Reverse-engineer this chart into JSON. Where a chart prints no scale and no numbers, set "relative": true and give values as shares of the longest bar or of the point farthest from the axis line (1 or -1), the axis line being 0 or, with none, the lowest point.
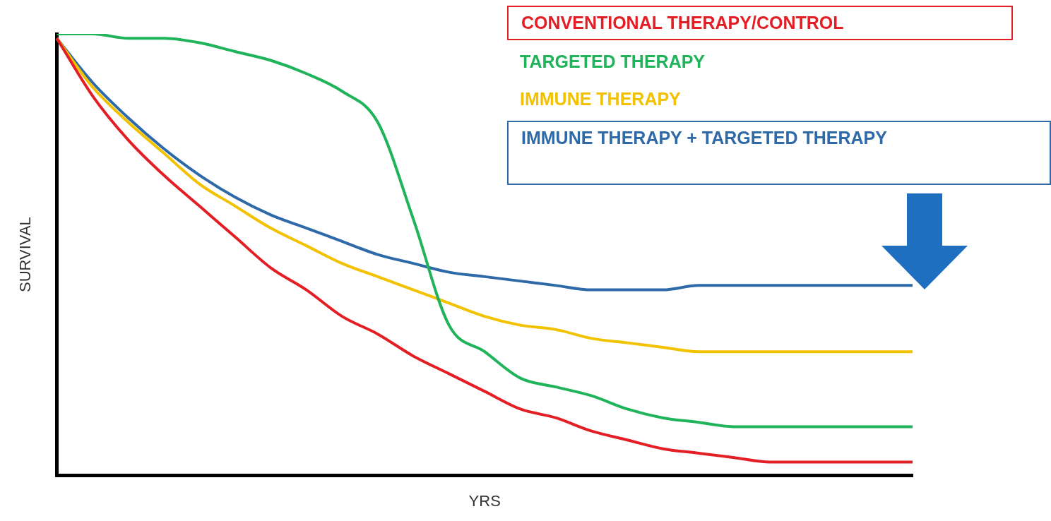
{
  "chart_data": {
    "type": "line",
    "relative": true,
    "xlabel": "YRS",
    "ylabel": "SURVIVAL",
    "legend": "top right",
    "grid": false,
    "marker": "none",
    "line_style": "solid",
    "categories": [
      null,
      null,
      null,
      null,
      null,
      null,
      null,
      null,
      null,
      null,
      null,
      null,
      null,
      null,
      null,
      null,
      null,
      null,
      null,
      null,
      null,
      null,
      null,
      null,
      null
    ],
    "series": [
      {
        "name": "CONVENTIONAL THERAPY/CONTROL",
        "color": "#e31e24",
        "values": [
          0.99,
          0.86,
          0.76,
          0.68,
          0.61,
          0.54,
          0.47,
          0.42,
          0.36,
          0.32,
          0.27,
          0.23,
          0.19,
          0.15,
          0.13,
          0.1,
          0.08,
          0.06,
          0.05,
          0.04,
          0.03,
          0.03,
          0.03,
          0.03,
          0.03
        ]
      },
      {
        "name": "TARGETED THERAPY",
        "color": "#1fb35a",
        "values": [
          1.0,
          1.0,
          0.99,
          0.99,
          0.98,
          0.96,
          0.94,
          0.91,
          0.87,
          0.8,
          0.58,
          0.34,
          0.28,
          0.22,
          0.2,
          0.18,
          0.15,
          0.13,
          0.12,
          0.11,
          0.11,
          0.11,
          0.11,
          0.11,
          0.11
        ]
      },
      {
        "name": "IMMUNE THERAPY",
        "color": "#f2c200",
        "values": [
          0.99,
          0.88,
          0.8,
          0.73,
          0.66,
          0.61,
          0.56,
          0.52,
          0.48,
          0.45,
          0.42,
          0.39,
          0.36,
          0.34,
          0.33,
          0.31,
          0.3,
          0.29,
          0.28,
          0.28,
          0.28,
          0.28,
          0.28,
          0.28,
          0.28
        ]
      },
      {
        "name": "IMMUNE THERAPY + TARGETED THERAPY",
        "color": "#2e69a8",
        "values": [
          0.99,
          0.89,
          0.81,
          0.74,
          0.68,
          0.63,
          0.59,
          0.56,
          0.53,
          0.5,
          0.48,
          0.46,
          0.45,
          0.44,
          0.43,
          0.42,
          0.42,
          0.42,
          0.43,
          0.43,
          0.43,
          0.43,
          0.43,
          0.43,
          0.43
        ]
      }
    ]
  }
}
